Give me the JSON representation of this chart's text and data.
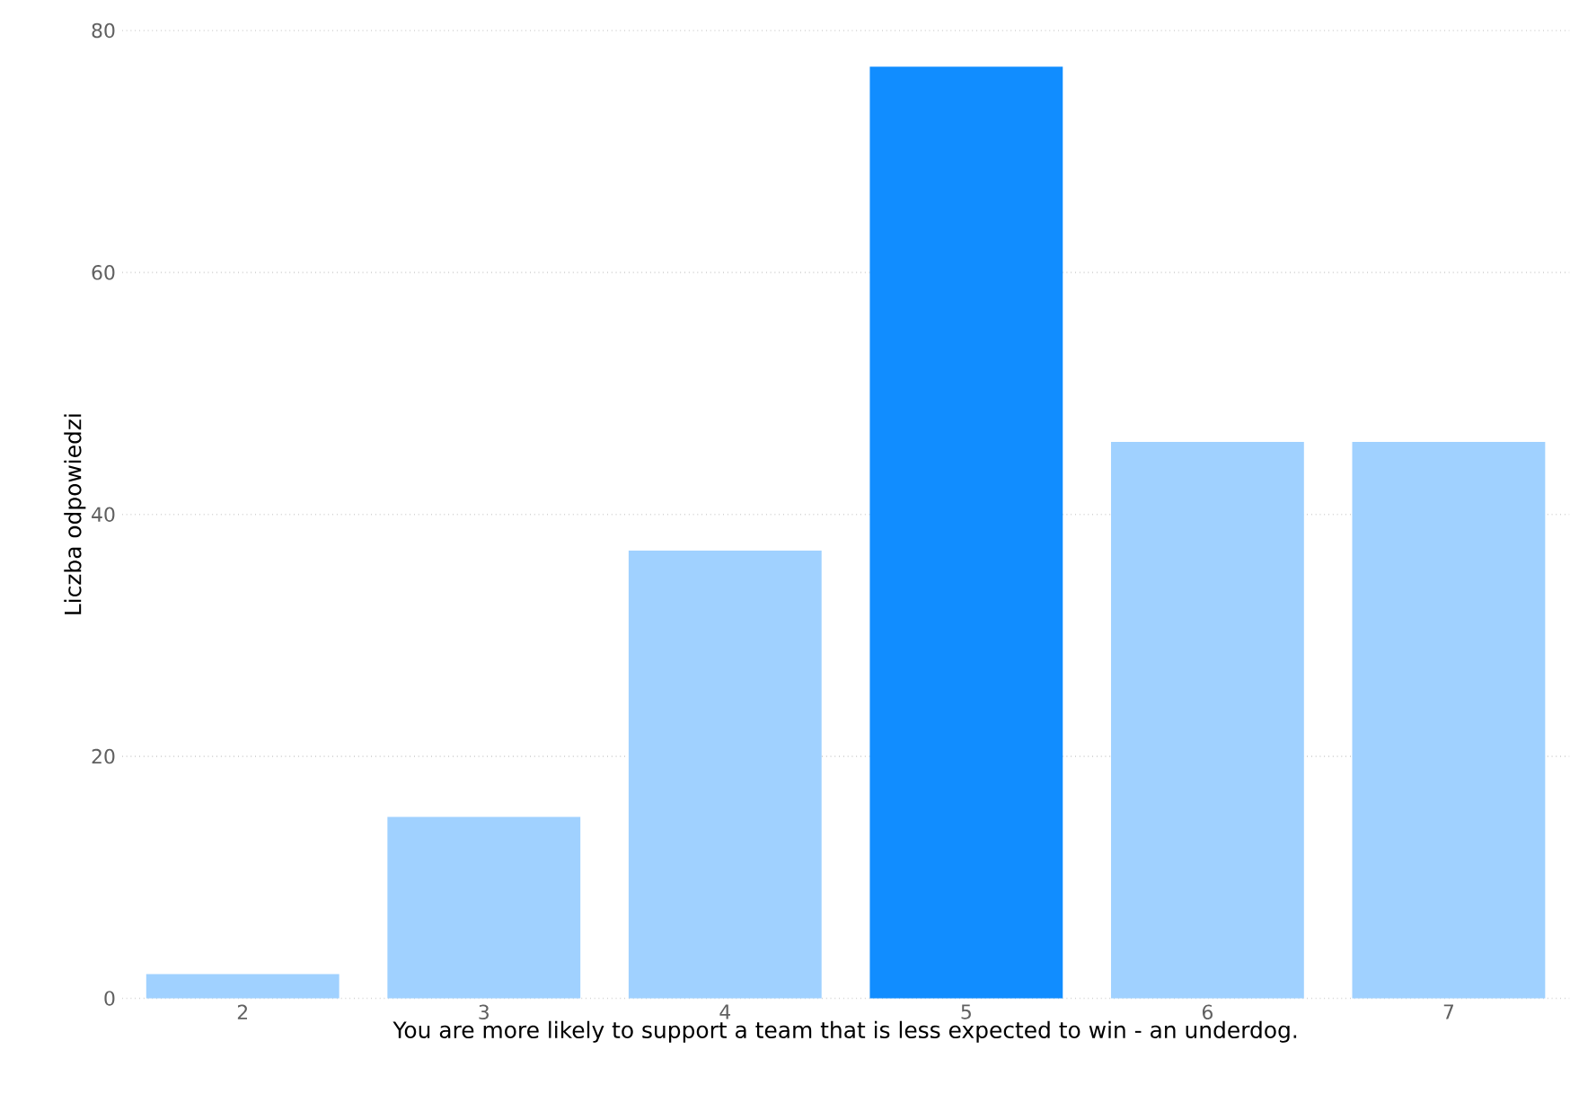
{
  "chart_data": {
    "type": "bar",
    "xlabel": "You are more likely to support a team that is less expected to win - an underdog.",
    "ylabel": "Liczba odpowiedzi",
    "categories": [
      "2",
      "3",
      "4",
      "5",
      "6",
      "7"
    ],
    "values": [
      2,
      15,
      37,
      77,
      46,
      46
    ],
    "colors": [
      "#a0d1ff",
      "#a0d1ff",
      "#a0d1ff",
      "#118dff",
      "#a0d1ff",
      "#a0d1ff"
    ],
    "ylim": [
      0,
      80
    ],
    "yticks": [
      0,
      20,
      40,
      60,
      80
    ],
    "grid": "y"
  }
}
